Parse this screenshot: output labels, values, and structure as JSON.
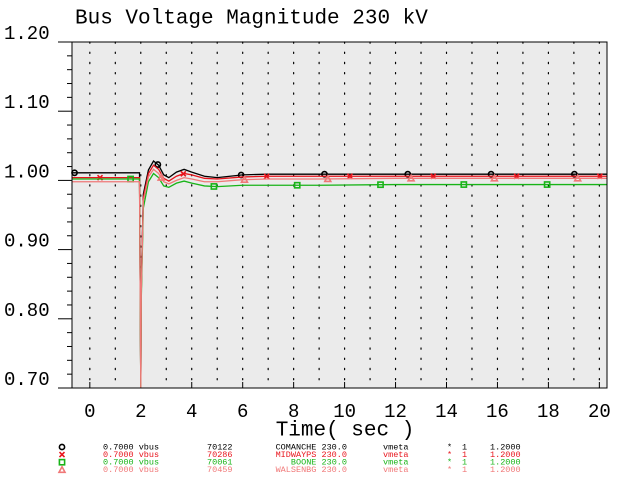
{
  "chart_data": {
    "type": "line",
    "title": "Bus Voltage Magnitude 230 kV",
    "x_label": "Time( sec )",
    "x": [
      -0.7,
      1.95,
      2.0,
      2.02,
      2.1,
      2.3,
      2.5,
      2.7,
      2.9,
      3.1,
      3.4,
      3.7,
      4.0,
      4.5,
      5.0,
      6.0,
      7.0,
      9.0,
      12.0,
      16.0,
      20.3
    ],
    "series": [
      {
        "name": "COMANCHE 230.0",
        "color": "#000000",
        "marker": "circle",
        "legend_prefix": [
          "0.7000 vbus",
          "70122"
        ],
        "legend_suffix": [
          "vmeta",
          "*",
          "1",
          "1.2000"
        ],
        "values": [
          1.011,
          1.011,
          0.7,
          0.85,
          0.98,
          1.015,
          1.028,
          1.022,
          1.008,
          1.004,
          1.012,
          1.016,
          1.012,
          1.006,
          1.004,
          1.008,
          1.009,
          1.009,
          1.009,
          1.009,
          1.009
        ]
      },
      {
        "name": "MIDWAYPS 230.0",
        "color": "#e8141c",
        "marker": "x",
        "legend_prefix": [
          "0.7000 vbus",
          "70286"
        ],
        "legend_suffix": [
          "vmeta",
          "*",
          "1",
          "1.2000"
        ],
        "values": [
          1.004,
          1.004,
          0.7,
          0.84,
          0.975,
          1.01,
          1.022,
          1.016,
          1.003,
          0.999,
          1.006,
          1.01,
          1.008,
          1.003,
          1.002,
          1.005,
          1.006,
          1.006,
          1.006,
          1.006,
          1.006
        ]
      },
      {
        "name": "BOONE 230.0",
        "color": "#18b418",
        "marker": "square",
        "legend_prefix": [
          "0.7000 vbus",
          "70061"
        ],
        "legend_suffix": [
          "vmeta",
          "*",
          "1",
          "1.2000"
        ],
        "values": [
          1.002,
          1.002,
          0.7,
          0.83,
          0.96,
          0.998,
          1.01,
          1.004,
          0.992,
          0.99,
          0.996,
          0.999,
          0.996,
          0.992,
          0.991,
          0.993,
          0.993,
          0.993,
          0.994,
          0.994,
          0.994
        ]
      },
      {
        "name": "WALSENBG 230.0",
        "color": "#f07878",
        "marker": "triangle",
        "legend_prefix": [
          "0.7000 vbus",
          "70459"
        ],
        "legend_suffix": [
          "vmeta",
          "*",
          "1",
          "1.2000"
        ],
        "values": [
          0.998,
          0.998,
          0.7,
          0.84,
          0.97,
          1.005,
          1.016,
          1.01,
          0.998,
          0.995,
          1.0,
          1.004,
          1.002,
          0.998,
          0.998,
          1.001,
          1.002,
          1.002,
          1.003,
          1.003,
          1.003
        ]
      }
    ],
    "xlim": [
      -0.7,
      20.3
    ],
    "ylim": [
      0.7,
      1.2
    ],
    "xticks": [
      0,
      2,
      4,
      6,
      8,
      10,
      12,
      14,
      16,
      18,
      20
    ],
    "yticks": [
      {
        "value": 0.7,
        "label": "0.70"
      },
      {
        "value": 0.8,
        "label": "0.80"
      },
      {
        "value": 0.9,
        "label": "0.90"
      },
      {
        "value": 1.0,
        "label": "1.00"
      },
      {
        "value": 1.1,
        "label": "1.10"
      },
      {
        "value": 1.2,
        "label": "1.20"
      }
    ],
    "grid": true
  }
}
